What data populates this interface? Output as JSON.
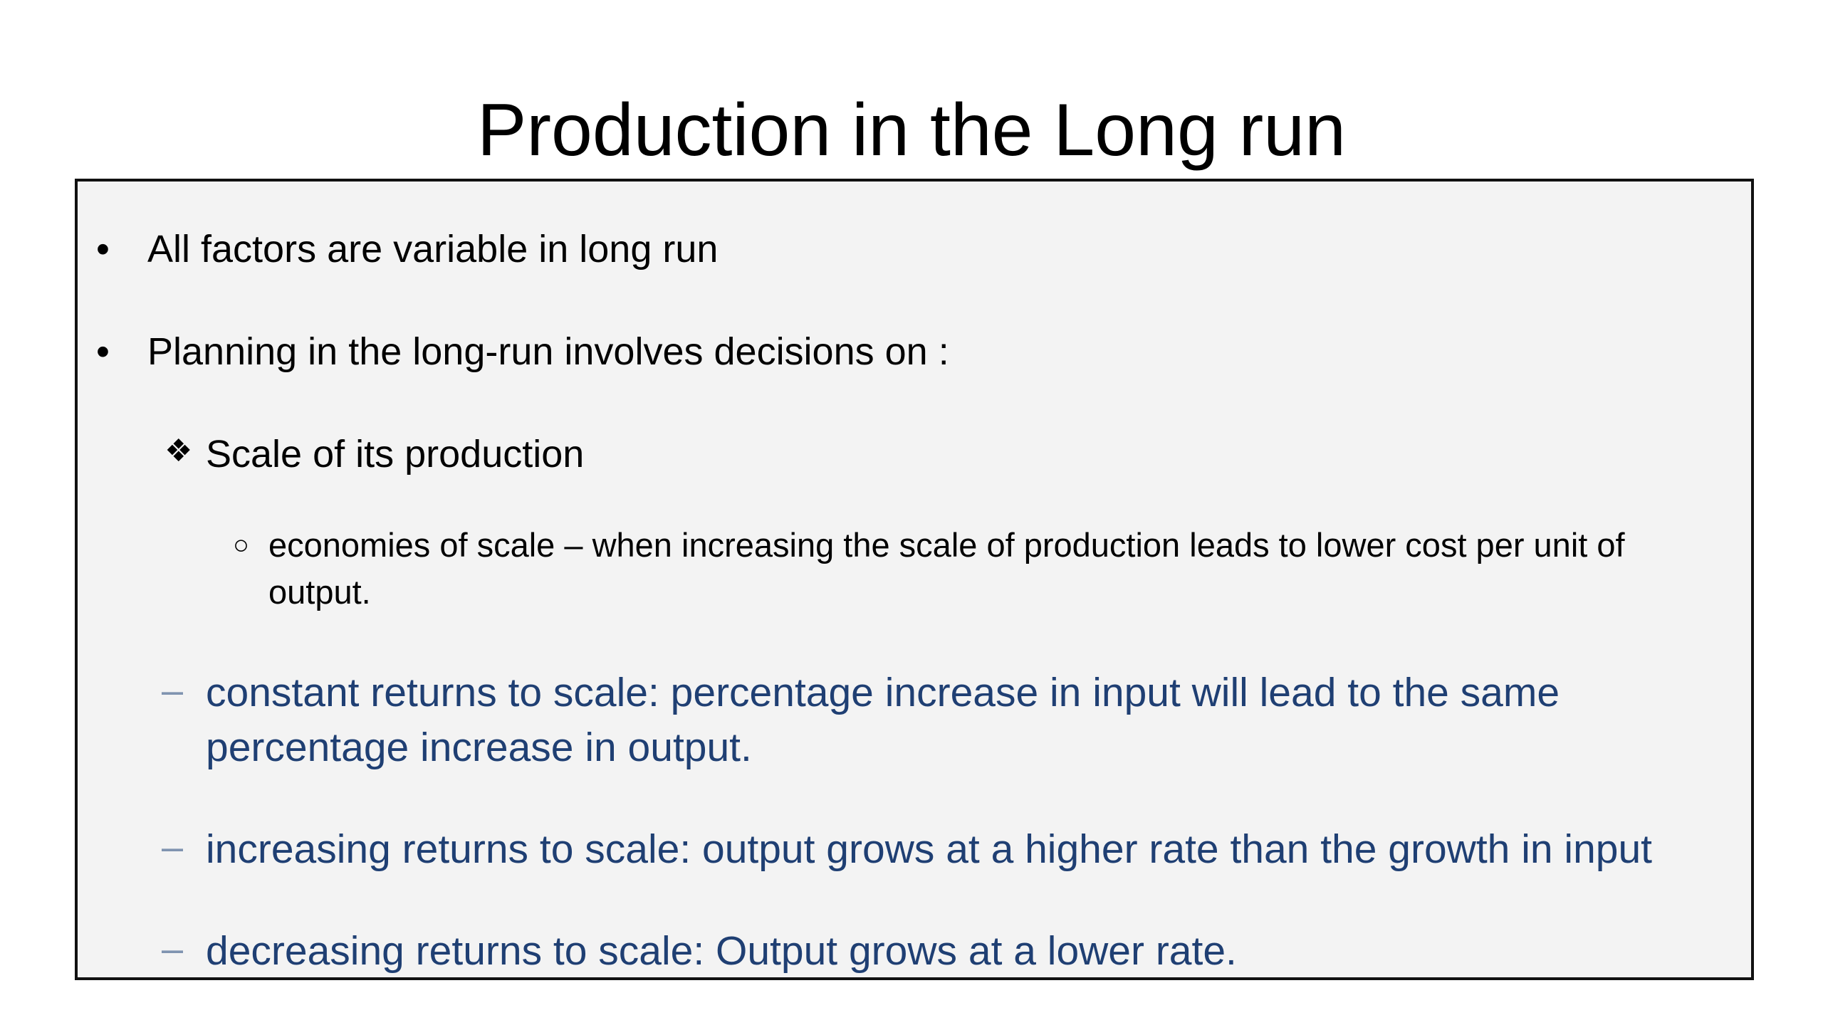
{
  "slide": {
    "title": "Production in the Long run",
    "bullets": [
      "All factors are variable in long run",
      "Planning in the long-run involves decisions on :"
    ],
    "sub_bullet": "Scale of  its production",
    "sub_sub_bullet": {
      "line1": "economies of scale – when increasing the scale of production leads to lower cost per unit of",
      "line2": "output."
    },
    "dash_items": [
      {
        "line1": "constant returns to scale: percentage increase in input will lead to the same",
        "line2": "percentage increase in output."
      },
      {
        "line1": "increasing returns to scale: output grows at a higher rate than the growth in input"
      },
      {
        "line1": "decreasing returns to scale: Output grows at a lower rate."
      }
    ],
    "markers": {
      "bullet": "•",
      "diamond": "❖",
      "circle": "○",
      "dash": "–"
    },
    "colors": {
      "text": "#000000",
      "accent_blue": "#1f3f73",
      "dash_gray_blue": "#7f93b0",
      "box_background": "#f3f3f3",
      "box_border": "#111111"
    }
  }
}
